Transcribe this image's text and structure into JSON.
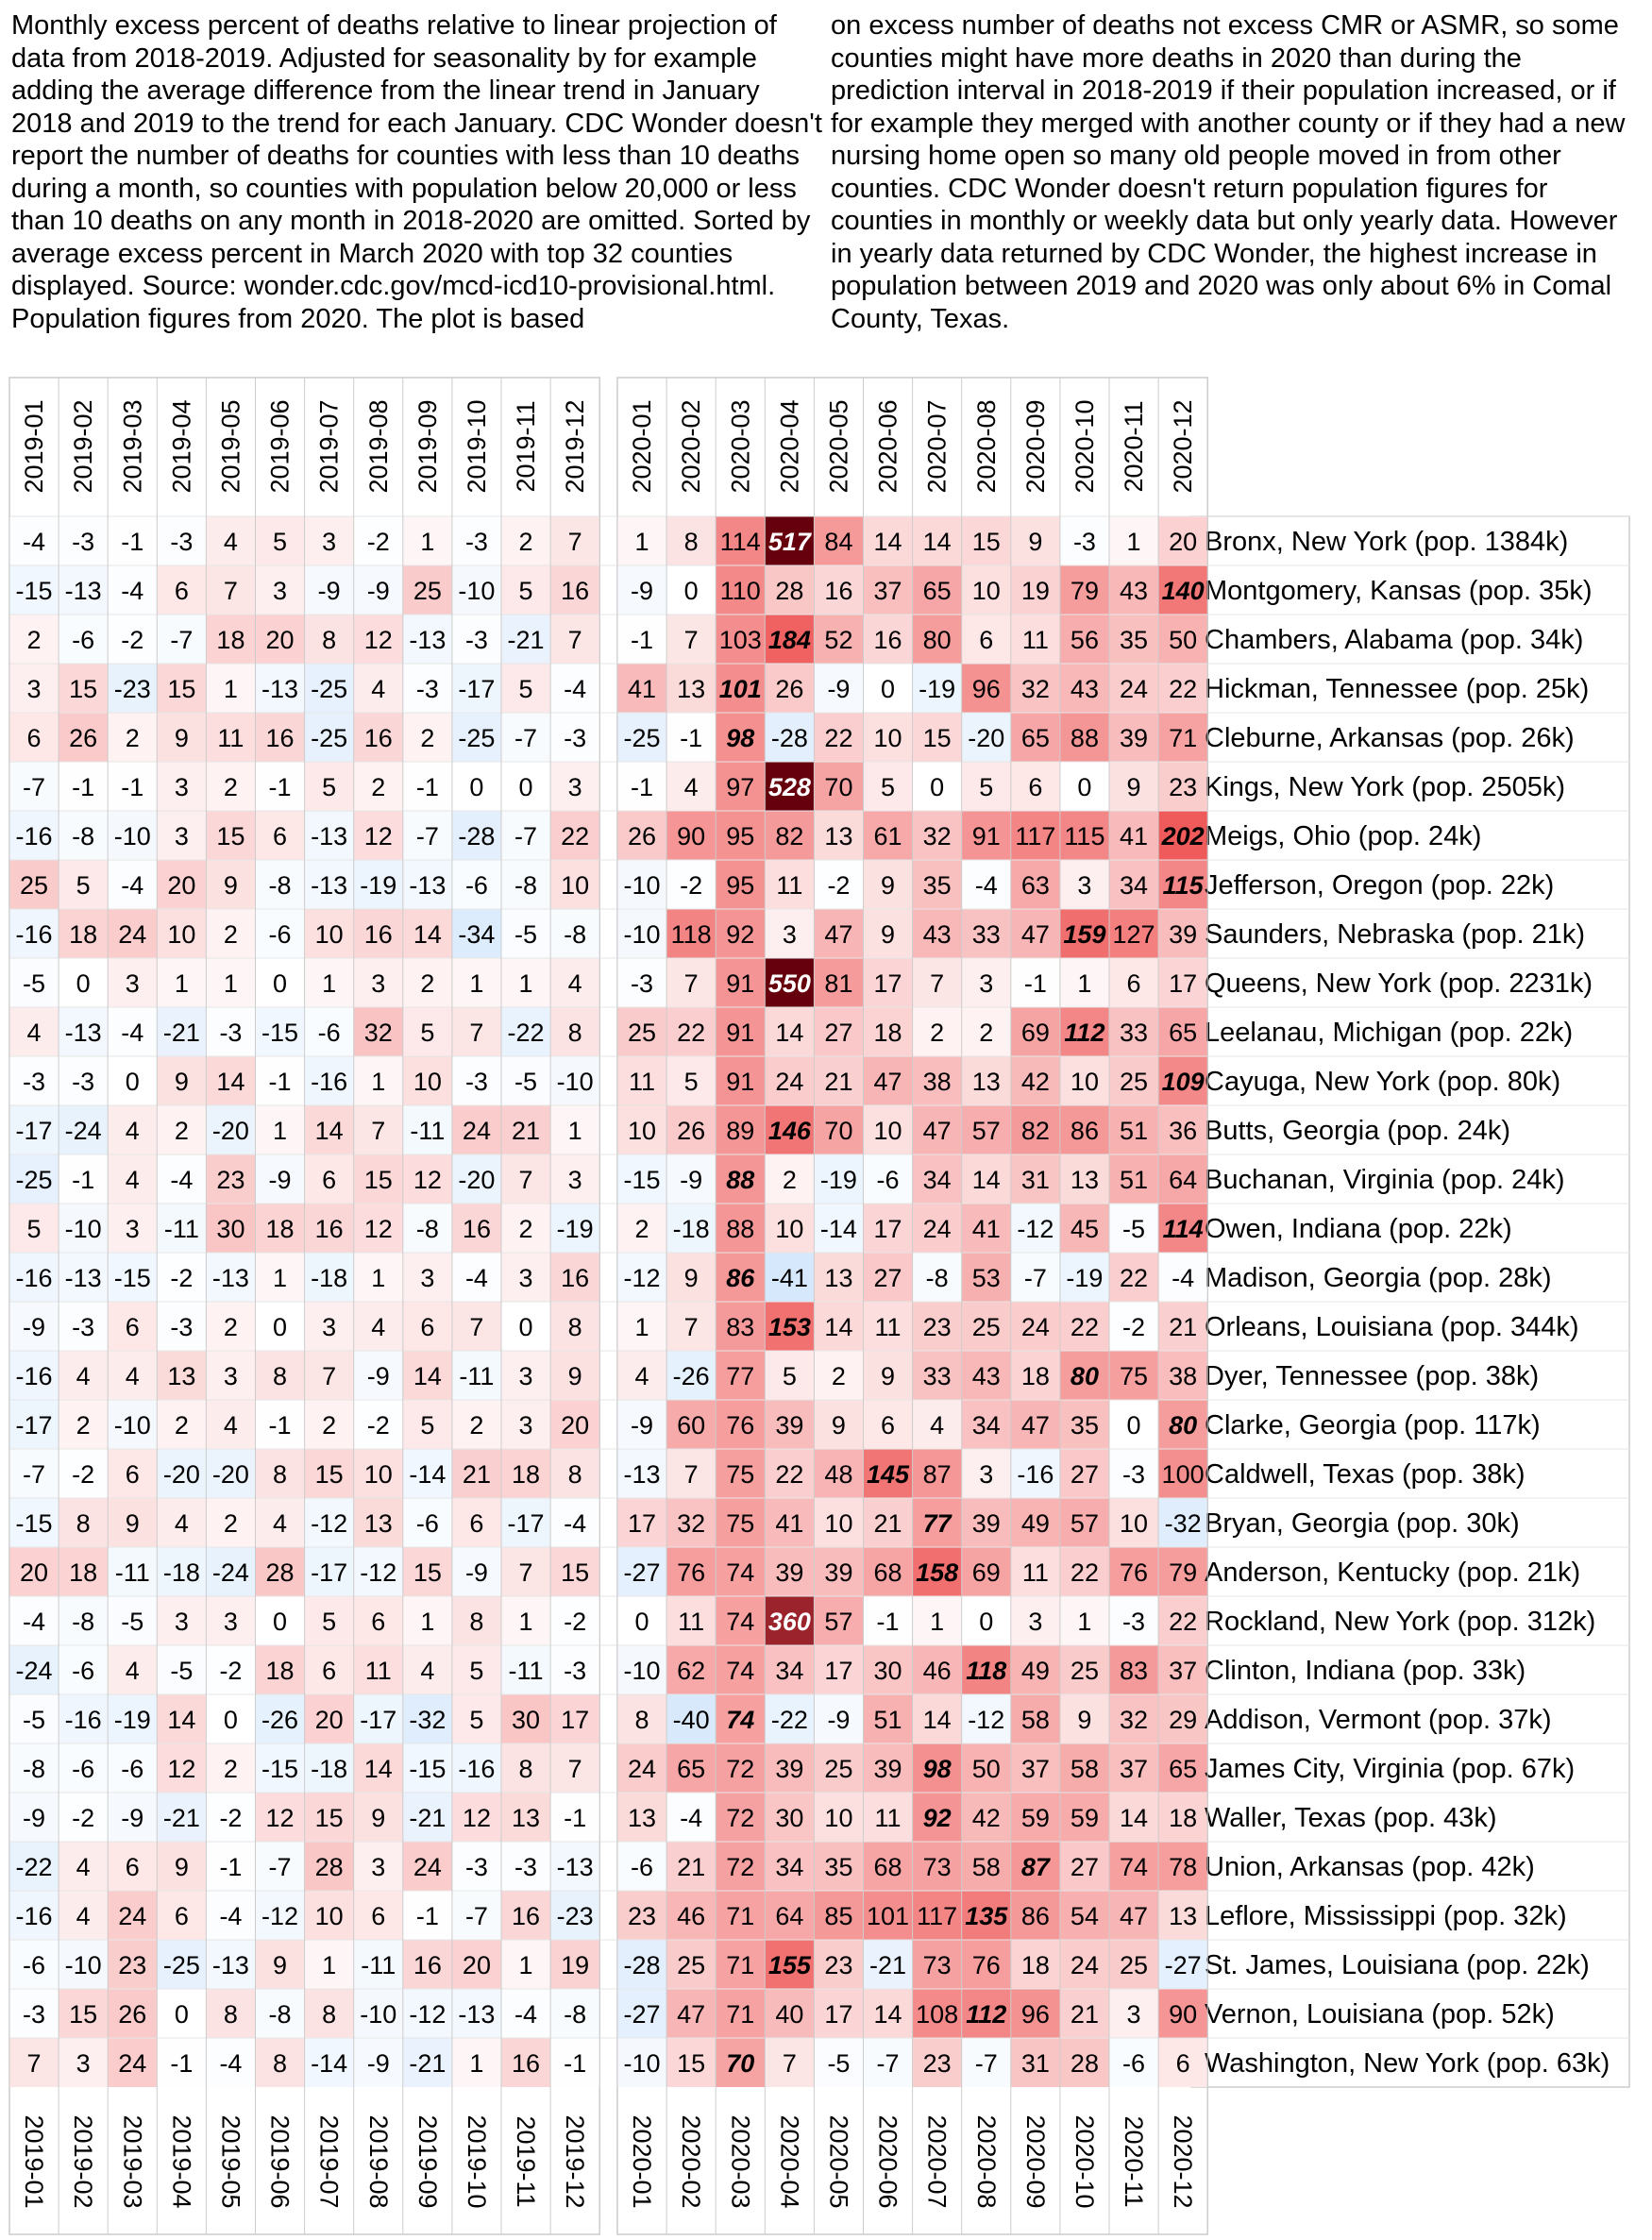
{
  "caption": {
    "left": "Monthly excess percent of deaths relative to linear projection of data from 2018-2019. Adjusted for seasonality by for example adding the average difference from the linear trend in January 2018 and 2019 to the trend for each January. CDC Wonder doesn't report the number of deaths for counties with less than 10 deaths during a month, so counties with population below 20,000 or less than 10 deaths on any month in 2018-2020 are omitted. Sorted by average excess percent in March 2020 with top 32 counties displayed. Source: wonder.cdc.gov/mcd-icd10-provisional.html. Population figures from 2020. The plot is based",
    "right": "on excess number of deaths not excess CMR or ASMR, so some counties might have more deaths in 2020 than during the prediction interval in 2018-2019 if their population increased, or if for example they merged with another county or if they had a new nursing home open so many old people moved in from other counties. CDC Wonder doesn't return population figures for counties in monthly or weekly data but only yearly data. However in yearly data returned by CDC Wonder, the highest increase in population between 2019 and 2020 was only about 6% in Comal County, Texas."
  },
  "chart_data": {
    "type": "heatmap",
    "colors": {
      "positive": "#67000d",
      "negative": "#2166ac",
      "grid": "#cccccc"
    },
    "panels": [
      {
        "columns": [
          "2019-01",
          "2019-02",
          "2019-03",
          "2019-04",
          "2019-05",
          "2019-06",
          "2019-07",
          "2019-08",
          "2019-09",
          "2019-10",
          "2019-11",
          "2019-12"
        ]
      },
      {
        "columns": [
          "2020-01",
          "2020-02",
          "2020-03",
          "2020-04",
          "2020-05",
          "2020-06",
          "2020-07",
          "2020-08",
          "2020-09",
          "2020-10",
          "2020-11",
          "2020-12"
        ]
      }
    ],
    "rows": [
      {
        "label": "Bronx, New York (pop. 1384k)",
        "y2019": [
          -4,
          -3,
          -1,
          -3,
          4,
          5,
          3,
          -2,
          1,
          -3,
          2,
          7
        ],
        "y2020": [
          1,
          8,
          114,
          517,
          84,
          14,
          14,
          15,
          9,
          -3,
          1,
          20
        ]
      },
      {
        "label": "Montgomery, Kansas (pop. 35k)",
        "y2019": [
          -15,
          -13,
          -4,
          6,
          7,
          3,
          -9,
          -9,
          25,
          -10,
          5,
          16
        ],
        "y2020": [
          -9,
          0,
          110,
          28,
          16,
          37,
          65,
          10,
          19,
          79,
          43,
          140
        ]
      },
      {
        "label": "Chambers, Alabama (pop. 34k)",
        "y2019": [
          2,
          -6,
          -2,
          -7,
          18,
          20,
          8,
          12,
          -13,
          -3,
          -21,
          7
        ],
        "y2020": [
          -1,
          7,
          103,
          184,
          52,
          16,
          80,
          6,
          11,
          56,
          35,
          50
        ]
      },
      {
        "label": "Hickman, Tennessee (pop. 25k)",
        "y2019": [
          3,
          15,
          -23,
          15,
          1,
          -13,
          -25,
          4,
          -3,
          -17,
          5,
          -4
        ],
        "y2020": [
          41,
          13,
          101,
          26,
          -9,
          0,
          -19,
          96,
          32,
          43,
          24,
          22
        ]
      },
      {
        "label": "Cleburne, Arkansas (pop. 26k)",
        "y2019": [
          6,
          26,
          2,
          9,
          11,
          16,
          -25,
          16,
          2,
          -25,
          -7,
          -3
        ],
        "y2020": [
          -25,
          -1,
          98,
          -28,
          22,
          10,
          15,
          -20,
          65,
          88,
          39,
          71
        ]
      },
      {
        "label": "Kings, New York (pop. 2505k)",
        "y2019": [
          -7,
          -1,
          -1,
          3,
          2,
          -1,
          5,
          2,
          -1,
          0,
          0,
          3
        ],
        "y2020": [
          -1,
          4,
          97,
          528,
          70,
          5,
          0,
          5,
          6,
          0,
          9,
          23
        ]
      },
      {
        "label": "Meigs, Ohio (pop. 24k)",
        "y2019": [
          -16,
          -8,
          -10,
          3,
          15,
          6,
          -13,
          12,
          -7,
          -28,
          -7,
          22
        ],
        "y2020": [
          26,
          90,
          95,
          82,
          13,
          61,
          32,
          91,
          117,
          115,
          41,
          202
        ]
      },
      {
        "label": "Jefferson, Oregon (pop. 22k)",
        "y2019": [
          25,
          5,
          -4,
          20,
          9,
          -8,
          -13,
          -19,
          -13,
          -6,
          -8,
          10
        ],
        "y2020": [
          -10,
          -2,
          95,
          11,
          -2,
          9,
          35,
          -4,
          63,
          3,
          34,
          115
        ]
      },
      {
        "label": "Saunders, Nebraska (pop. 21k)",
        "y2019": [
          -16,
          18,
          24,
          10,
          2,
          -6,
          10,
          16,
          14,
          -34,
          -5,
          -8
        ],
        "y2020": [
          -10,
          118,
          92,
          3,
          47,
          9,
          43,
          33,
          47,
          159,
          127,
          39
        ]
      },
      {
        "label": "Queens, New York (pop. 2231k)",
        "y2019": [
          -5,
          0,
          3,
          1,
          1,
          0,
          1,
          3,
          2,
          1,
          1,
          4
        ],
        "y2020": [
          -3,
          7,
          91,
          550,
          81,
          17,
          7,
          3,
          -1,
          1,
          6,
          17
        ]
      },
      {
        "label": "Leelanau, Michigan (pop. 22k)",
        "y2019": [
          4,
          -13,
          -4,
          -21,
          -3,
          -15,
          -6,
          32,
          5,
          7,
          -22,
          8
        ],
        "y2020": [
          25,
          22,
          91,
          14,
          27,
          18,
          2,
          2,
          69,
          112,
          33,
          65
        ]
      },
      {
        "label": "Cayuga, New York (pop. 80k)",
        "y2019": [
          -3,
          -3,
          0,
          9,
          14,
          -1,
          -16,
          1,
          10,
          -3,
          -5,
          -10
        ],
        "y2020": [
          11,
          5,
          91,
          24,
          21,
          47,
          38,
          13,
          42,
          10,
          25,
          109
        ]
      },
      {
        "label": "Butts, Georgia (pop. 24k)",
        "y2019": [
          -17,
          -24,
          4,
          2,
          -20,
          1,
          14,
          7,
          -11,
          24,
          21,
          1
        ],
        "y2020": [
          10,
          26,
          89,
          146,
          70,
          10,
          47,
          57,
          82,
          86,
          51,
          36
        ]
      },
      {
        "label": "Buchanan, Virginia (pop. 24k)",
        "y2019": [
          -25,
          -1,
          4,
          -4,
          23,
          -9,
          6,
          15,
          12,
          -20,
          7,
          3
        ],
        "y2020": [
          -15,
          -9,
          88,
          2,
          -19,
          -6,
          34,
          14,
          31,
          13,
          51,
          64
        ]
      },
      {
        "label": "Owen, Indiana (pop. 22k)",
        "y2019": [
          5,
          -10,
          3,
          -11,
          30,
          18,
          16,
          12,
          -8,
          16,
          2,
          -19
        ],
        "y2020": [
          2,
          -18,
          88,
          10,
          -14,
          17,
          24,
          41,
          -12,
          45,
          -5,
          114
        ]
      },
      {
        "label": "Madison, Georgia (pop. 28k)",
        "y2019": [
          -16,
          -13,
          -15,
          -2,
          -13,
          1,
          -18,
          1,
          3,
          -4,
          3,
          16
        ],
        "y2020": [
          -12,
          9,
          86,
          -41,
          13,
          27,
          -8,
          53,
          -7,
          -19,
          22,
          -4
        ]
      },
      {
        "label": "Orleans, Louisiana (pop. 344k)",
        "y2019": [
          -9,
          -3,
          6,
          -3,
          2,
          0,
          3,
          4,
          6,
          7,
          0,
          8
        ],
        "y2020": [
          1,
          7,
          83,
          153,
          14,
          11,
          23,
          25,
          24,
          22,
          -2,
          21
        ]
      },
      {
        "label": "Dyer, Tennessee (pop. 38k)",
        "y2019": [
          -16,
          4,
          4,
          13,
          3,
          8,
          7,
          -9,
          14,
          -11,
          3,
          9
        ],
        "y2020": [
          4,
          -26,
          77,
          5,
          2,
          9,
          33,
          43,
          18,
          80,
          75,
          38
        ]
      },
      {
        "label": "Clarke, Georgia (pop. 117k)",
        "y2019": [
          -17,
          2,
          -10,
          2,
          4,
          -1,
          2,
          -2,
          5,
          2,
          3,
          20
        ],
        "y2020": [
          -9,
          60,
          76,
          39,
          9,
          6,
          4,
          34,
          47,
          35,
          0,
          80
        ]
      },
      {
        "label": "Caldwell, Texas (pop. 38k)",
        "y2019": [
          -7,
          -2,
          6,
          -20,
          -20,
          8,
          15,
          10,
          -14,
          21,
          18,
          8
        ],
        "y2020": [
          -13,
          7,
          75,
          22,
          48,
          145,
          87,
          3,
          -16,
          27,
          -3,
          100
        ]
      },
      {
        "label": "Bryan, Georgia (pop. 30k)",
        "y2019": [
          -15,
          8,
          9,
          4,
          2,
          4,
          -12,
          13,
          -6,
          6,
          -17,
          -4
        ],
        "y2020": [
          17,
          32,
          75,
          41,
          10,
          21,
          77,
          39,
          49,
          57,
          10,
          -32
        ]
      },
      {
        "label": "Anderson, Kentucky (pop. 21k)",
        "y2019": [
          20,
          18,
          -11,
          -18,
          -24,
          28,
          -17,
          -12,
          15,
          -9,
          7,
          15
        ],
        "y2020": [
          -27,
          76,
          74,
          39,
          39,
          68,
          158,
          69,
          11,
          22,
          76,
          79
        ]
      },
      {
        "label": "Rockland, New York (pop. 312k)",
        "y2019": [
          -4,
          -8,
          -5,
          3,
          3,
          0,
          5,
          6,
          1,
          8,
          1,
          -2
        ],
        "y2020": [
          0,
          11,
          74,
          360,
          57,
          -1,
          1,
          0,
          3,
          1,
          -3,
          22
        ]
      },
      {
        "label": "Clinton, Indiana (pop. 33k)",
        "y2019": [
          -24,
          -6,
          4,
          -5,
          -2,
          18,
          6,
          11,
          4,
          5,
          -11,
          -3
        ],
        "y2020": [
          -10,
          62,
          74,
          34,
          17,
          30,
          46,
          118,
          49,
          25,
          83,
          37
        ]
      },
      {
        "label": "Addison, Vermont (pop. 37k)",
        "y2019": [
          -5,
          -16,
          -19,
          14,
          0,
          -26,
          20,
          -17,
          -32,
          5,
          30,
          17
        ],
        "y2020": [
          8,
          -40,
          74,
          -22,
          -9,
          51,
          14,
          -12,
          58,
          9,
          32,
          29
        ]
      },
      {
        "label": "James City, Virginia (pop. 67k)",
        "y2019": [
          -8,
          -6,
          -6,
          12,
          2,
          -15,
          -18,
          14,
          -15,
          -16,
          8,
          7
        ],
        "y2020": [
          24,
          65,
          72,
          39,
          25,
          39,
          98,
          50,
          37,
          58,
          37,
          65
        ]
      },
      {
        "label": "Waller, Texas (pop. 43k)",
        "y2019": [
          -9,
          -2,
          -9,
          -21,
          -2,
          12,
          15,
          9,
          -21,
          12,
          13,
          -1
        ],
        "y2020": [
          13,
          -4,
          72,
          30,
          10,
          11,
          92,
          42,
          59,
          59,
          14,
          18
        ]
      },
      {
        "label": "Union, Arkansas (pop. 42k)",
        "y2019": [
          -22,
          4,
          6,
          9,
          -1,
          -7,
          28,
          3,
          24,
          -3,
          -3,
          -13
        ],
        "y2020": [
          -6,
          21,
          72,
          34,
          35,
          68,
          73,
          58,
          87,
          27,
          74,
          78
        ]
      },
      {
        "label": "Leflore, Mississippi (pop. 32k)",
        "y2019": [
          -16,
          4,
          24,
          6,
          -4,
          -12,
          10,
          6,
          -1,
          -7,
          16,
          -23
        ],
        "y2020": [
          23,
          46,
          71,
          64,
          85,
          101,
          117,
          135,
          86,
          54,
          47,
          13
        ]
      },
      {
        "label": "St. James, Louisiana (pop. 22k)",
        "y2019": [
          -6,
          -10,
          23,
          -25,
          -13,
          9,
          1,
          -11,
          16,
          20,
          1,
          19
        ],
        "y2020": [
          -28,
          25,
          71,
          155,
          23,
          -21,
          73,
          76,
          18,
          24,
          25,
          -27
        ]
      },
      {
        "label": "Vernon, Louisiana (pop. 52k)",
        "y2019": [
          -3,
          15,
          26,
          0,
          8,
          -8,
          8,
          -10,
          -12,
          -13,
          -4,
          -8
        ],
        "y2020": [
          -27,
          47,
          71,
          40,
          17,
          14,
          108,
          112,
          96,
          21,
          3,
          90
        ]
      },
      {
        "label": "Washington, New York (pop. 63k)",
        "y2019": [
          7,
          3,
          24,
          -1,
          -4,
          8,
          -14,
          -9,
          -21,
          1,
          16,
          -1
        ],
        "y2020": [
          -10,
          15,
          70,
          7,
          -5,
          -7,
          23,
          -7,
          31,
          28,
          -6,
          6
        ]
      }
    ]
  }
}
